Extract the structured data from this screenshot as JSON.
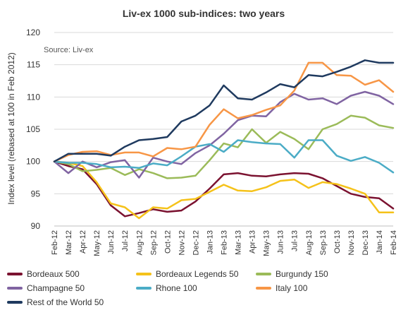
{
  "chart_data": {
    "type": "line",
    "title": "Liv-ex 1000 sub-indices: two years",
    "source": "Source: Liv-ex",
    "ylabel": "Index level (rebased at 100 in Feb 2012)",
    "xlabel": "",
    "ylim": [
      90,
      120
    ],
    "yticks": [
      90,
      95,
      100,
      105,
      110,
      115,
      120
    ],
    "grid": true,
    "legend_position": "bottom",
    "categories": [
      "Feb-12",
      "Mar-12",
      "Apr-12",
      "May-12",
      "Jun-12",
      "Jul-12",
      "Aug-12",
      "Sep-12",
      "Oct-12",
      "Nov-12",
      "Dec-12",
      "Jan-13",
      "Feb-13",
      "Mar-13",
      "Apr-13",
      "May-13",
      "Jun-13",
      "Jul-13",
      "Aug-13",
      "Sep-13",
      "Oct-13",
      "Nov-13",
      "Dec-13",
      "Jan-14",
      "Feb-14"
    ],
    "series": [
      {
        "name": "Bordeaux 500",
        "color": "#7b1230",
        "values": [
          100,
          99.3,
          98.8,
          96.5,
          93.2,
          91.5,
          92.0,
          92.6,
          92.2,
          92.4,
          93.8,
          95.8,
          98.0,
          98.2,
          97.8,
          97.7,
          98.0,
          98.2,
          98.1,
          97.4,
          96.2,
          95.0,
          94.5,
          94.3,
          92.7
        ]
      },
      {
        "name": "Bordeaux Legends 50",
        "color": "#f5c21a",
        "values": [
          100,
          99.8,
          99.3,
          96.8,
          93.5,
          92.9,
          91.2,
          92.9,
          92.7,
          94.0,
          94.2,
          95.3,
          96.4,
          95.5,
          95.4,
          96.0,
          97.0,
          97.2,
          95.9,
          96.8,
          96.5,
          95.8,
          95.0,
          92.1,
          92.1
        ]
      },
      {
        "name": "Burgundy 150",
        "color": "#9bbb59",
        "values": [
          100,
          99.6,
          98.5,
          98.7,
          99.0,
          97.9,
          98.8,
          98.2,
          97.4,
          97.5,
          97.8,
          100.2,
          102.8,
          102.2,
          105.0,
          102.9,
          104.6,
          103.5,
          101.9,
          105.0,
          105.8,
          107.1,
          106.8,
          105.6,
          105.2
        ]
      },
      {
        "name": "Champagne 50",
        "color": "#8064a2",
        "values": [
          100,
          98.2,
          100.0,
          99.1,
          99.9,
          100.2,
          97.5,
          100.6,
          100.0,
          99.6,
          101.3,
          102.5,
          104.3,
          106.4,
          107.1,
          107.0,
          109.2,
          110.5,
          109.6,
          109.8,
          108.9,
          110.2,
          110.8,
          110.2,
          108.9
        ]
      },
      {
        "name": "Rhone 100",
        "color": "#4bacc6",
        "values": [
          100,
          99.8,
          99.8,
          99.6,
          99.1,
          99.2,
          99.0,
          99.7,
          99.4,
          100.8,
          102.3,
          102.7,
          101.5,
          103.3,
          103.0,
          102.8,
          102.7,
          100.6,
          103.3,
          103.3,
          100.9,
          100.1,
          100.7,
          99.8,
          98.3
        ]
      },
      {
        "name": "Italy 100",
        "color": "#f79646",
        "values": [
          100,
          101.0,
          101.5,
          101.6,
          101.0,
          101.4,
          101.4,
          100.8,
          102.1,
          101.9,
          102.3,
          105.7,
          108.1,
          106.7,
          107.2,
          108.0,
          108.7,
          111.0,
          115.3,
          115.3,
          113.4,
          113.3,
          111.9,
          112.6,
          110.8
        ]
      },
      {
        "name": "Rest of the World 50",
        "color": "#1f3a5f",
        "values": [
          100,
          101.2,
          101.2,
          101.2,
          100.9,
          102.3,
          103.3,
          103.5,
          103.8,
          106.2,
          107.1,
          108.7,
          111.8,
          109.8,
          109.6,
          110.7,
          112.0,
          111.5,
          113.4,
          113.2,
          113.9,
          114.7,
          115.7,
          115.3,
          115.3
        ]
      }
    ]
  }
}
